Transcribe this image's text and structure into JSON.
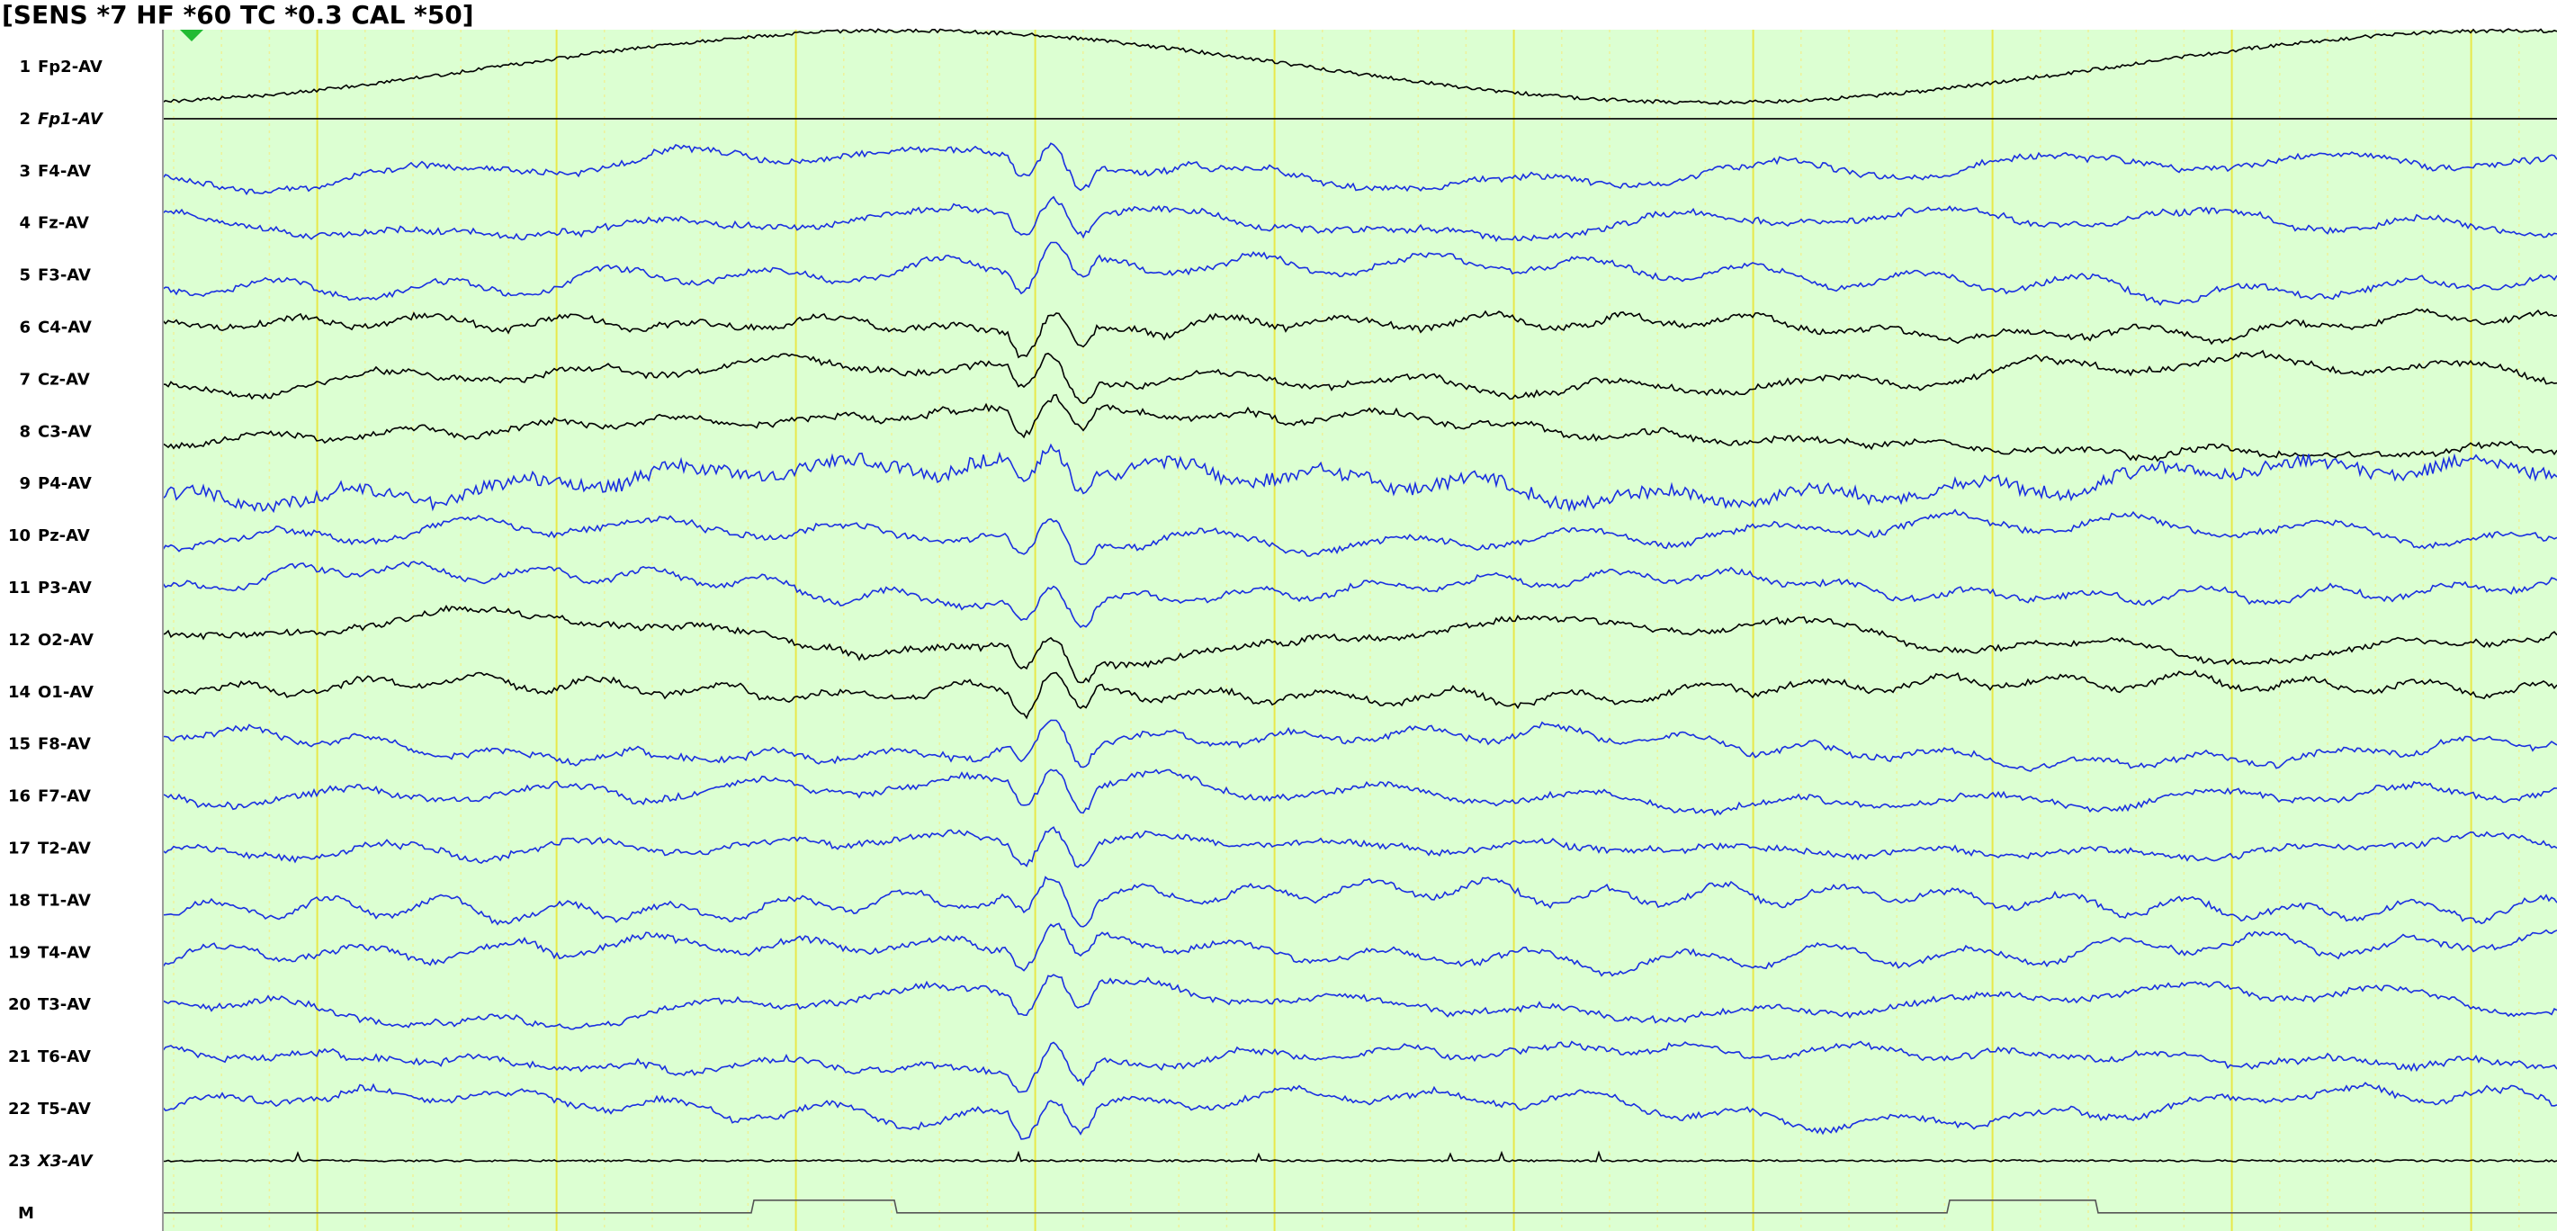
{
  "header": {
    "title": "[SENS *7  HF *60  TC *0.3  CAL *50]"
  },
  "channels": [
    {
      "number": "1",
      "label": "Fp2-AV",
      "color": "#000000"
    },
    {
      "number": "2",
      "label": "Fp1-AV",
      "color": "#000000",
      "italic": true
    },
    {
      "number": "3",
      "label": "F4-AV",
      "color": "#1a2fe0"
    },
    {
      "number": "4",
      "label": "Fz-AV",
      "color": "#1a2fe0"
    },
    {
      "number": "5",
      "label": "F3-AV",
      "color": "#1a2fe0"
    },
    {
      "number": "6",
      "label": "C4-AV",
      "color": "#000000"
    },
    {
      "number": "7",
      "label": "Cz-AV",
      "color": "#000000"
    },
    {
      "number": "8",
      "label": "C3-AV",
      "color": "#000000"
    },
    {
      "number": "9",
      "label": "P4-AV",
      "color": "#1a2fe0"
    },
    {
      "number": "10",
      "label": "Pz-AV",
      "color": "#1a2fe0"
    },
    {
      "number": "11",
      "label": "P3-AV",
      "color": "#1a2fe0"
    },
    {
      "number": "12",
      "label": "O2-AV",
      "color": "#000000"
    },
    {
      "number": "14",
      "label": "O1-AV",
      "color": "#000000"
    },
    {
      "number": "15",
      "label": "F8-AV",
      "color": "#1a2fe0"
    },
    {
      "number": "16",
      "label": "F7-AV",
      "color": "#1a2fe0"
    },
    {
      "number": "17",
      "label": "T2-AV",
      "color": "#1a2fe0"
    },
    {
      "number": "18",
      "label": "T1-AV",
      "color": "#1a2fe0"
    },
    {
      "number": "19",
      "label": "T4-AV",
      "color": "#1a2fe0"
    },
    {
      "number": "20",
      "label": "T3-AV",
      "color": "#1a2fe0"
    },
    {
      "number": "21",
      "label": "T6-AV",
      "color": "#1a2fe0"
    },
    {
      "number": "22",
      "label": "T5-AV",
      "color": "#1a2fe0"
    },
    {
      "number": "23",
      "label": "X3-AV",
      "color": "#000000",
      "italic": true
    },
    {
      "label": "M",
      "color": "#555555"
    }
  ]
}
